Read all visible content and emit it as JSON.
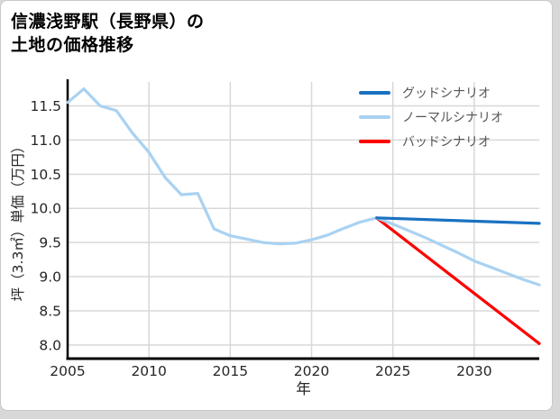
{
  "page": {
    "title_line1": "信濃浅野駅（長野県）の",
    "title_line2": "土地の価格推移"
  },
  "chart_data": {
    "type": "line",
    "title": "信濃浅野駅（長野県）の土地の価格推移",
    "xlabel": "年",
    "ylabel": "坪（3.3㎡）単価（万円）",
    "xlim": [
      2005,
      2034
    ],
    "ylim": [
      7.8,
      11.85
    ],
    "x_ticks": [
      2005,
      2010,
      2015,
      2020,
      2025,
      2030
    ],
    "y_ticks": [
      8.0,
      8.5,
      9.0,
      9.5,
      10.0,
      10.5,
      11.0,
      11.5
    ],
    "grid": true,
    "legend_position": "top-right-inside",
    "series": [
      {
        "id": "good-scenario",
        "name": "グッドシナリオ",
        "color": "#1a72c2",
        "x": [
          2024,
          2034
        ],
        "values": [
          9.86,
          9.78
        ]
      },
      {
        "id": "normal-scenario",
        "name": "ノーマルシナリオ",
        "color": "#a9d2f2",
        "x": [
          2005,
          2006,
          2007,
          2008,
          2009,
          2010,
          2011,
          2012,
          2013,
          2014,
          2015,
          2016,
          2017,
          2018,
          2019,
          2020,
          2021,
          2022,
          2023,
          2024,
          2025,
          2026,
          2027,
          2028,
          2029,
          2030,
          2031,
          2032,
          2033,
          2034
        ],
        "values": [
          11.55,
          11.75,
          11.5,
          11.43,
          11.1,
          10.82,
          10.45,
          10.2,
          10.22,
          9.7,
          9.6,
          9.55,
          9.5,
          9.48,
          9.49,
          9.54,
          9.61,
          9.71,
          9.8,
          9.86,
          9.77,
          9.67,
          9.57,
          9.46,
          9.35,
          9.23,
          9.14,
          9.05,
          8.96,
          8.88
        ]
      },
      {
        "id": "bad-scenario",
        "name": "バッドシナリオ",
        "color": "#ff0000",
        "x": [
          2024,
          2034
        ],
        "values": [
          9.86,
          8.02
        ]
      }
    ]
  },
  "styles": {
    "grid_color": "#d8d8d8",
    "axis_color": "#000000",
    "tick_label_color": "#262626",
    "axis_label_color": "#262626",
    "legend_text_color": "#555555",
    "card_bg": "#ffffff",
    "card_border_color": "#c9c9c9",
    "page_bg": "#d8d8d8"
  }
}
